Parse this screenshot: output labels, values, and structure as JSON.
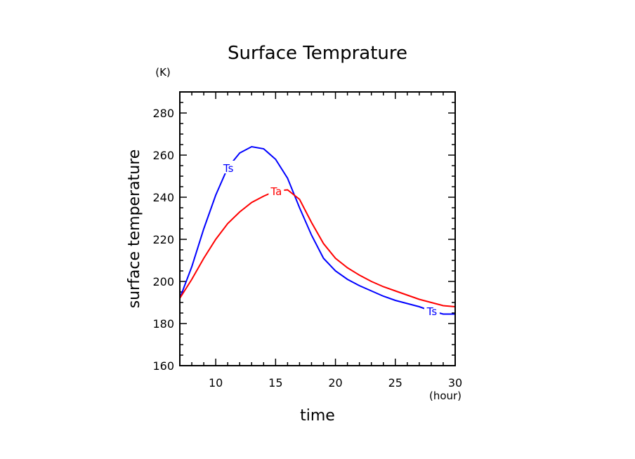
{
  "chart_data": {
    "type": "line",
    "title": "Surface Temprature",
    "xlabel": "time",
    "ylabel": "surface temperature",
    "x_unit": "(hour)",
    "y_unit": "(K)",
    "xlim": [
      7,
      30
    ],
    "ylim": [
      160,
      290
    ],
    "xticks": [
      10,
      15,
      20,
      25,
      30
    ],
    "yticks": [
      160,
      180,
      200,
      220,
      240,
      260,
      280
    ],
    "x": [
      7,
      8,
      9,
      10,
      11,
      12,
      13,
      14,
      15,
      16,
      17,
      18,
      19,
      20,
      21,
      22,
      23,
      24,
      25,
      26,
      27,
      28,
      29,
      30
    ],
    "series": [
      {
        "name": "Ts",
        "color": "#0000ff",
        "label_at": [
          11,
          28
        ],
        "values": [
          192,
          207,
          225,
          241,
          254,
          261,
          264,
          263,
          258,
          249,
          235,
          222,
          211,
          205,
          201,
          198,
          195.5,
          193,
          191,
          189.5,
          188,
          186,
          184.5,
          184.5
        ]
      },
      {
        "name": "Ta",
        "color": "#ff0000",
        "label_at": [
          15
        ],
        "values": [
          192,
          201,
          211,
          220,
          227.5,
          233,
          237.5,
          240.5,
          243,
          243.5,
          239,
          228,
          218,
          211,
          206.5,
          203,
          200,
          197.5,
          195.5,
          193.5,
          191.5,
          190,
          188.5,
          188
        ]
      }
    ]
  }
}
